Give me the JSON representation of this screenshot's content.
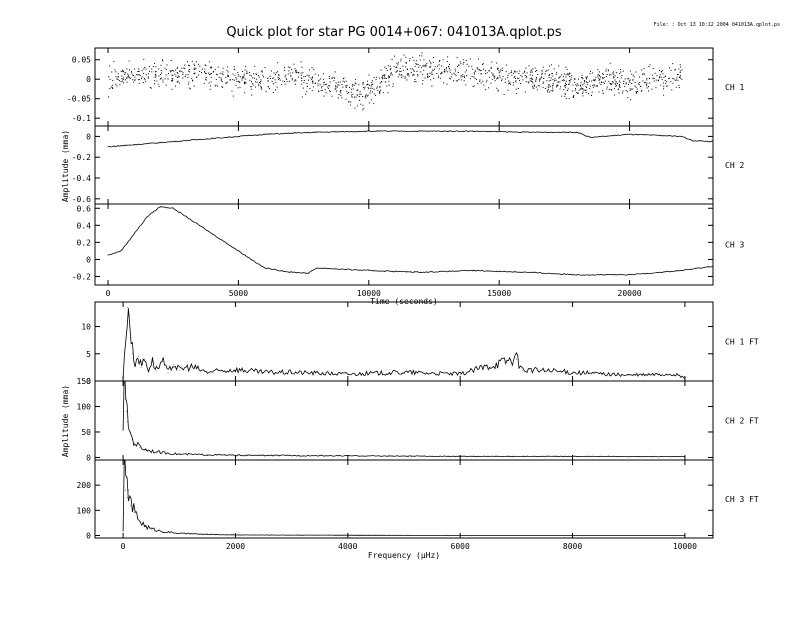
{
  "title": "Quick plot for star PG 0014+067:  041013A.qplot.ps",
  "file_stamp": "File: : Oct 13 10:12 2004  041013A.qplot.ps",
  "chart_data": [
    {
      "type": "scatter",
      "panel": "time",
      "label": "CH 1",
      "x_range": [
        -500,
        23200
      ],
      "ylim": [
        -0.12,
        0.08
      ],
      "yticks": [
        0.05,
        0,
        -0.05,
        -0.1
      ],
      "ytick_labels": [
        "0.05",
        "0",
        "-0.05",
        "-0.1"
      ],
      "x": [
        0,
        1000,
        2000,
        3000,
        4000,
        5000,
        6000,
        7000,
        8000,
        9000,
        9600,
        10000,
        11000,
        12000,
        13000,
        14000,
        15000,
        16000,
        17000,
        18000,
        19000,
        20000,
        21000,
        22000
      ],
      "y": [
        0.0,
        0.01,
        0.01,
        0.02,
        0.01,
        0.0,
        0.0,
        0.01,
        -0.01,
        -0.02,
        -0.04,
        -0.03,
        0.02,
        0.03,
        0.02,
        0.02,
        0.01,
        0.0,
        0.0,
        -0.02,
        0.0,
        -0.01,
        0.0,
        0.01
      ],
      "spread": 0.025
    },
    {
      "type": "line",
      "panel": "time",
      "label": "CH 2",
      "x_range": [
        -500,
        23200
      ],
      "ylim": [
        -0.65,
        0.1
      ],
      "yticks": [
        0,
        -0.2,
        -0.4,
        -0.6
      ],
      "ytick_labels": [
        "0",
        "-0.2",
        "-0.4",
        "-0.6"
      ],
      "x": [
        0,
        1000,
        2000,
        3000,
        4000,
        5000,
        6000,
        8000,
        10000,
        12000,
        14000,
        16000,
        18000,
        18500,
        20000,
        22000,
        22400,
        23200
      ],
      "y": [
        -0.1,
        -0.08,
        -0.06,
        -0.04,
        -0.02,
        0.0,
        0.02,
        0.04,
        0.05,
        0.05,
        0.05,
        0.04,
        0.04,
        -0.01,
        0.02,
        0.0,
        -0.04,
        -0.05
      ]
    },
    {
      "type": "line",
      "panel": "time",
      "label": "CH 3",
      "x_range": [
        -500,
        23200
      ],
      "ylim": [
        -0.3,
        0.65
      ],
      "yticks": [
        0.6,
        0.4,
        0.2,
        0,
        -0.2
      ],
      "ytick_labels": [
        "0.6",
        "0.4",
        "0.2",
        "0",
        "-0.2"
      ],
      "xticks": [
        0,
        5000,
        10000,
        15000,
        20000
      ],
      "xtick_labels": [
        "0",
        "5000",
        "10000",
        "15000",
        "20000"
      ],
      "xlabel": "Time (seconds)",
      "x": [
        0,
        500,
        1000,
        1500,
        2000,
        2500,
        3000,
        4000,
        5000,
        5500,
        6000,
        7000,
        7700,
        8000,
        10000,
        12000,
        14000,
        16000,
        18000,
        20000,
        22000,
        23200
      ],
      "y": [
        0.05,
        0.1,
        0.3,
        0.5,
        0.62,
        0.6,
        0.5,
        0.3,
        0.1,
        0.0,
        -0.1,
        -0.15,
        -0.16,
        -0.1,
        -0.13,
        -0.15,
        -0.13,
        -0.15,
        -0.18,
        -0.18,
        -0.13,
        -0.08
      ]
    },
    {
      "type": "line",
      "panel": "freq",
      "label": "CH 1 FT",
      "x_range": [
        -500,
        10500
      ],
      "ylim": [
        0,
        14.5
      ],
      "yticks": [
        10,
        5,
        0
      ],
      "ytick_labels": [
        "10",
        "5",
        "0"
      ],
      "x": [
        0,
        40,
        80,
        110,
        140,
        170,
        220,
        270,
        320,
        380,
        450,
        520,
        600,
        700,
        800,
        900,
        1000,
        1200,
        1500,
        2000,
        2500,
        3000,
        4000,
        5000,
        6000,
        7000,
        7100,
        8000,
        9000,
        9800,
        10000
      ],
      "y": [
        0.5,
        6,
        13.5,
        12,
        8,
        5,
        3,
        4.5,
        2.5,
        4,
        2,
        3.5,
        2,
        3.5,
        1.5,
        3,
        2,
        2.5,
        1.5,
        2,
        1.5,
        1.5,
        1.2,
        1.5,
        1.2,
        4,
        2,
        1.5,
        1.0,
        1.2,
        0.5
      ]
    },
    {
      "type": "line",
      "panel": "freq",
      "label": "CH 2 FT",
      "x_range": [
        -500,
        10500
      ],
      "ylim": [
        -5,
        150
      ],
      "yticks": [
        150,
        100,
        50,
        0
      ],
      "ytick_labels": [
        "150",
        "100",
        "50",
        "0"
      ],
      "ylabel": "Amplitude (mma)",
      "x": [
        0,
        20,
        40,
        60,
        80,
        120,
        160,
        200,
        300,
        400,
        600,
        800,
        1000,
        1500,
        2000,
        4000,
        6000,
        8000,
        10000
      ],
      "y": [
        60,
        145,
        115,
        90,
        70,
        50,
        35,
        28,
        20,
        15,
        10,
        8,
        6,
        5,
        4,
        3,
        2,
        2,
        1.5
      ]
    },
    {
      "type": "line",
      "panel": "freq",
      "label": "CH 3 FT",
      "x_range": [
        -500,
        10500
      ],
      "ylim": [
        -10,
        300
      ],
      "yticks": [
        200,
        100,
        0
      ],
      "ytick_labels": [
        "200",
        "100",
        "0"
      ],
      "xticks": [
        0,
        2000,
        4000,
        6000,
        8000,
        10000
      ],
      "xtick_labels": [
        "0",
        "2000",
        "4000",
        "6000",
        "8000",
        "10000"
      ],
      "xlabel": "Frequency (µHz)",
      "x": [
        0,
        20,
        40,
        60,
        80,
        100,
        130,
        160,
        200,
        250,
        300,
        400,
        500,
        700,
        1000,
        1500,
        2000,
        4000,
        6000,
        8000,
        10000
      ],
      "y": [
        20,
        270,
        180,
        230,
        150,
        180,
        120,
        110,
        90,
        70,
        55,
        35,
        25,
        15,
        8,
        4,
        2,
        1,
        0,
        0,
        0
      ]
    }
  ],
  "shared_ylabel_time": "Amplitude (mma)"
}
